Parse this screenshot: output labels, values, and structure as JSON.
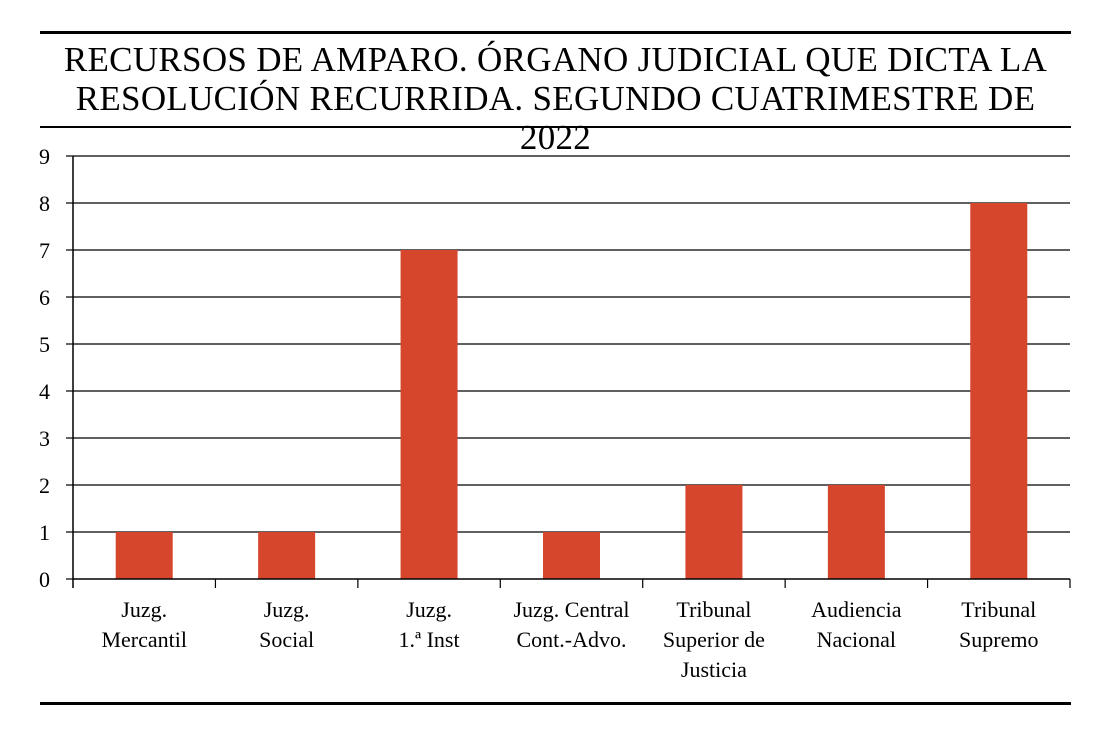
{
  "chart_data": {
    "type": "bar",
    "title_lines": [
      "RECURSOS DE AMPARO. ÓRGANO JUDICIAL QUE DICTA LA",
      "RESOLUCIÓN RECURRIDA. SEGUNDO CUATRIMESTRE DE 2022"
    ],
    "categories": [
      [
        "Juzg.",
        "Mercantil"
      ],
      [
        "Juzg.",
        "Social"
      ],
      [
        "Juzg.",
        "1.ª Inst"
      ],
      [
        "Juzg. Central",
        "Cont.-Advo."
      ],
      [
        "Tribunal",
        "Superior de",
        "Justicia"
      ],
      [
        "Audiencia",
        "Nacional"
      ],
      [
        "Tribunal",
        "Supremo"
      ]
    ],
    "values": [
      1,
      1,
      7,
      1,
      2,
      2,
      8
    ],
    "ylim": [
      0,
      9
    ],
    "yticks": [
      "0",
      "1",
      "2",
      "3",
      "4",
      "5",
      "6",
      "7",
      "8",
      "9"
    ],
    "xlabel": "",
    "ylabel": "",
    "grid": true,
    "bar_color": "#d5462d"
  }
}
